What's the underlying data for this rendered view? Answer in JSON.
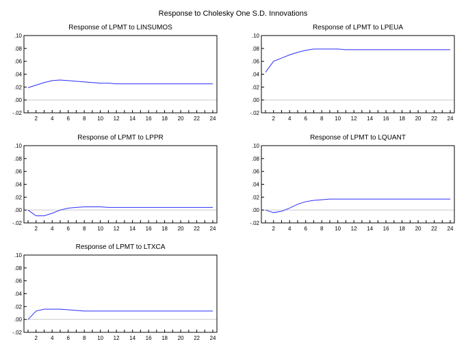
{
  "figure": {
    "title": "Response to Cholesky One S.D. Innovations"
  },
  "chart_data": [
    {
      "type": "line",
      "title": "Response of LPMT to LINSUMOS",
      "x": [
        1,
        2,
        3,
        4,
        5,
        6,
        7,
        8,
        9,
        10,
        11,
        12,
        13,
        14,
        15,
        16,
        17,
        18,
        19,
        20,
        21,
        22,
        23,
        24
      ],
      "series": [
        {
          "values": [
            0.019,
            0.023,
            0.027,
            0.03,
            0.031,
            0.03,
            0.029,
            0.028,
            0.027,
            0.026,
            0.026,
            0.025,
            0.025,
            0.025,
            0.025,
            0.025,
            0.025,
            0.025,
            0.025,
            0.025,
            0.025,
            0.025,
            0.025,
            0.025
          ]
        }
      ],
      "ylim": [
        -0.02,
        0.1
      ],
      "yticks": [
        "-.02",
        ".00",
        ".02",
        ".04",
        ".06",
        ".08",
        ".10"
      ],
      "xticks": [
        "2",
        "4",
        "6",
        "8",
        "10",
        "12",
        "14",
        "16",
        "18",
        "20",
        "22",
        "24"
      ],
      "color": "#2a2aff"
    },
    {
      "type": "line",
      "title": "Response of LPMT to LPEUA",
      "x": [
        1,
        2,
        3,
        4,
        5,
        6,
        7,
        8,
        9,
        10,
        11,
        12,
        13,
        14,
        15,
        16,
        17,
        18,
        19,
        20,
        21,
        22,
        23,
        24
      ],
      "series": [
        {
          "values": [
            0.043,
            0.06,
            0.065,
            0.07,
            0.074,
            0.077,
            0.079,
            0.079,
            0.079,
            0.079,
            0.078,
            0.078,
            0.078,
            0.078,
            0.078,
            0.078,
            0.078,
            0.078,
            0.078,
            0.078,
            0.078,
            0.078,
            0.078,
            0.078
          ]
        }
      ],
      "ylim": [
        -0.02,
        0.1
      ],
      "yticks": [
        "-.02",
        ".00",
        ".02",
        ".04",
        ".06",
        ".08",
        ".10"
      ],
      "xticks": [
        "2",
        "4",
        "6",
        "8",
        "10",
        "12",
        "14",
        "16",
        "18",
        "20",
        "22",
        "24"
      ],
      "color": "#2a2aff"
    },
    {
      "type": "line",
      "title": "Response of LPMT to LPPR",
      "x": [
        1,
        2,
        3,
        4,
        5,
        6,
        7,
        8,
        9,
        10,
        11,
        12,
        13,
        14,
        15,
        16,
        17,
        18,
        19,
        20,
        21,
        22,
        23,
        24
      ],
      "series": [
        {
          "values": [
            0.0,
            -0.009,
            -0.009,
            -0.005,
            0.0,
            0.003,
            0.004,
            0.005,
            0.005,
            0.005,
            0.004,
            0.004,
            0.004,
            0.004,
            0.004,
            0.004,
            0.004,
            0.004,
            0.004,
            0.004,
            0.004,
            0.004,
            0.004,
            0.004
          ]
        }
      ],
      "ylim": [
        -0.02,
        0.1
      ],
      "yticks": [
        "-.02",
        ".00",
        ".02",
        ".04",
        ".06",
        ".08",
        ".10"
      ],
      "xticks": [
        "2",
        "4",
        "6",
        "8",
        "10",
        "12",
        "14",
        "16",
        "18",
        "20",
        "22",
        "24"
      ],
      "color": "#2a2aff"
    },
    {
      "type": "line",
      "title": "Response of LPMT to LQUANT",
      "x": [
        1,
        2,
        3,
        4,
        5,
        6,
        7,
        8,
        9,
        10,
        11,
        12,
        13,
        14,
        15,
        16,
        17,
        18,
        19,
        20,
        21,
        22,
        23,
        24
      ],
      "series": [
        {
          "values": [
            0.0,
            -0.004,
            -0.002,
            0.003,
            0.009,
            0.013,
            0.015,
            0.016,
            0.017,
            0.017,
            0.017,
            0.017,
            0.017,
            0.017,
            0.017,
            0.017,
            0.017,
            0.017,
            0.017,
            0.017,
            0.017,
            0.017,
            0.017,
            0.017
          ]
        }
      ],
      "ylim": [
        -0.02,
        0.1
      ],
      "yticks": [
        "-.02",
        ".00",
        ".02",
        ".04",
        ".06",
        ".08",
        ".10"
      ],
      "xticks": [
        "2",
        "4",
        "6",
        "8",
        "10",
        "12",
        "14",
        "16",
        "18",
        "20",
        "22",
        "24"
      ],
      "color": "#2a2aff"
    },
    {
      "type": "line",
      "title": "Response of LPMT to LTXCA",
      "x": [
        1,
        2,
        3,
        4,
        5,
        6,
        7,
        8,
        9,
        10,
        11,
        12,
        13,
        14,
        15,
        16,
        17,
        18,
        19,
        20,
        21,
        22,
        23,
        24
      ],
      "series": [
        {
          "values": [
            0.0,
            0.013,
            0.016,
            0.016,
            0.016,
            0.015,
            0.014,
            0.013,
            0.013,
            0.013,
            0.013,
            0.013,
            0.013,
            0.013,
            0.013,
            0.013,
            0.013,
            0.013,
            0.013,
            0.013,
            0.013,
            0.013,
            0.013,
            0.013
          ]
        }
      ],
      "ylim": [
        -0.02,
        0.1
      ],
      "yticks": [
        "-.02",
        ".00",
        ".02",
        ".04",
        ".06",
        ".08",
        ".10"
      ],
      "xticks": [
        "2",
        "4",
        "6",
        "8",
        "10",
        "12",
        "14",
        "16",
        "18",
        "20",
        "22",
        "24"
      ],
      "color": "#2a2aff"
    }
  ]
}
